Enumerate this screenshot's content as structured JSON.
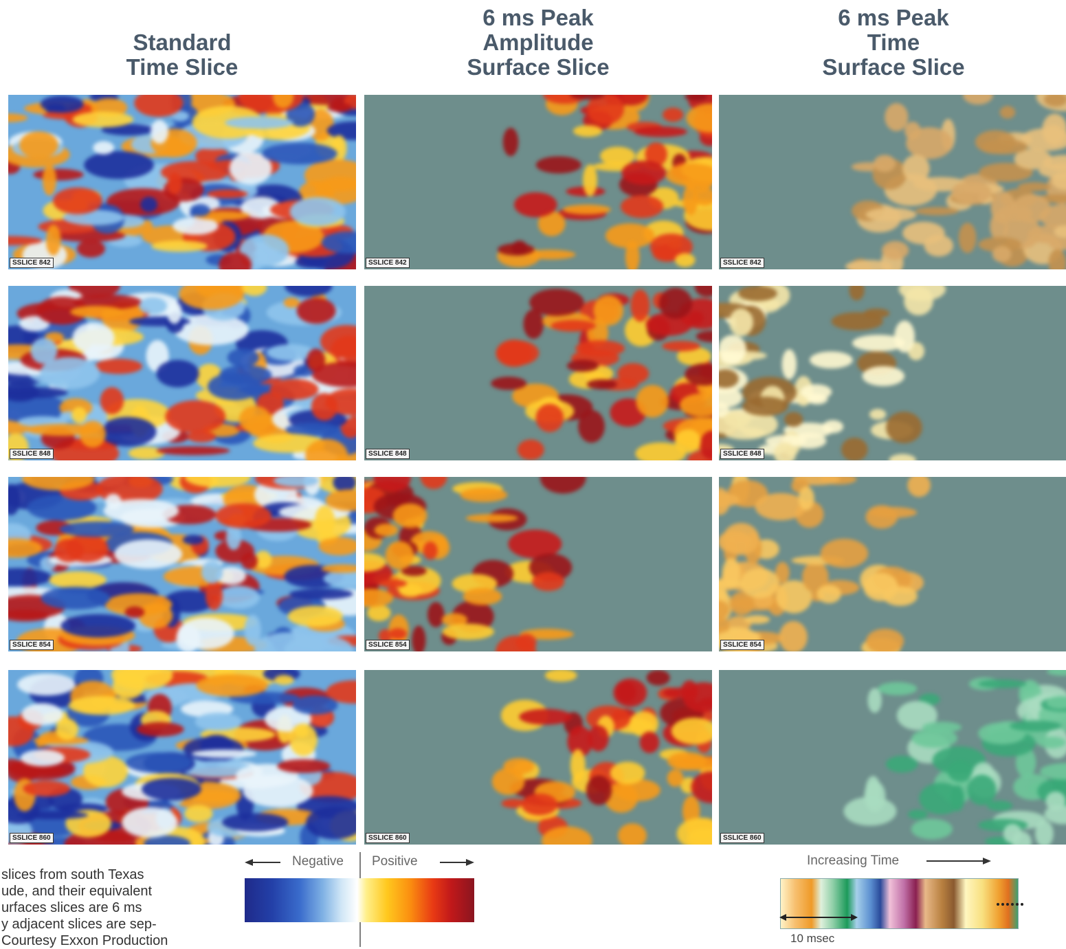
{
  "columns": [
    {
      "title": [
        "Standard",
        "Time Slice"
      ]
    },
    {
      "title": [
        "6 ms Peak",
        "Amplitude",
        "Surface Slice"
      ]
    },
    {
      "title": [
        "6 ms Peak",
        "Time",
        "Surface Slice"
      ]
    }
  ],
  "rows": [
    {
      "label": "SSLICE 842"
    },
    {
      "label": "SSLICE 848"
    },
    {
      "label": "SSLICE 854"
    },
    {
      "label": "SSLICE 860"
    }
  ],
  "amplitude_legend": {
    "negative": "Negative",
    "positive": "Positive"
  },
  "time_legend": {
    "title": "Increasing Time",
    "scale": "10 msec"
  },
  "caption": [
    "slices from south Texas",
    "ude, and their equivalent",
    "urfaces slices are 6 ms",
    "y adjacent slices are sep-",
    "Courtesy Exxon Production"
  ]
}
